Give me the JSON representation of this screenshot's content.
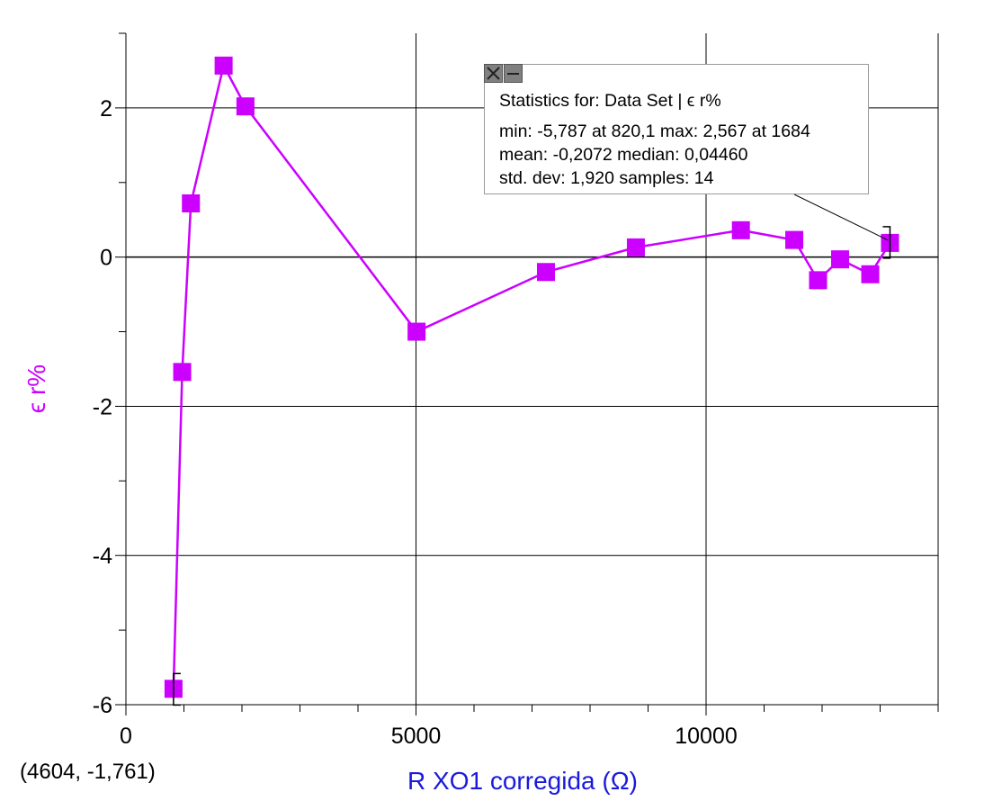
{
  "chart_data": {
    "type": "line",
    "xlabel": "R XO1 corregida (Ω)",
    "ylabel": "ϵ r%",
    "xlim": [
      0,
      14000
    ],
    "ylim": [
      -6,
      3
    ],
    "x_ticks": [
      0,
      5000,
      10000
    ],
    "y_ticks": [
      -6,
      -4,
      -2,
      0,
      2
    ],
    "grid": true,
    "series": [
      {
        "color": "#cc00ff",
        "marker": "square",
        "x": [
          820.1,
          970,
          1120,
          1684,
          2060,
          5010,
          7240,
          8790,
          10600,
          11520,
          11930,
          12310,
          12830,
          13170
        ],
        "y": [
          -5.787,
          -1.54,
          0.72,
          2.567,
          2.02,
          -1.0,
          -0.2,
          0.13,
          0.36,
          0.23,
          -0.31,
          -0.03,
          -0.23,
          0.19
        ]
      }
    ],
    "statistics": {
      "title": "Statistics for: Data Set | ϵ r%",
      "line1": "min: -5,787 at 820,1 max: 2,567 at 1684",
      "line2": "mean: -0,2072 median: 0,04460",
      "line3": "std. dev: 1,920 samples: 14"
    },
    "coordinate_readout": "(4604, -1,761)"
  },
  "colors": {
    "series": "#cc00ff",
    "xlabel": "#1a1adb",
    "ylabel": "#cc00ff",
    "grid": "#000000"
  },
  "icons": {
    "close": "close-icon",
    "minimize": "minimize-icon"
  }
}
